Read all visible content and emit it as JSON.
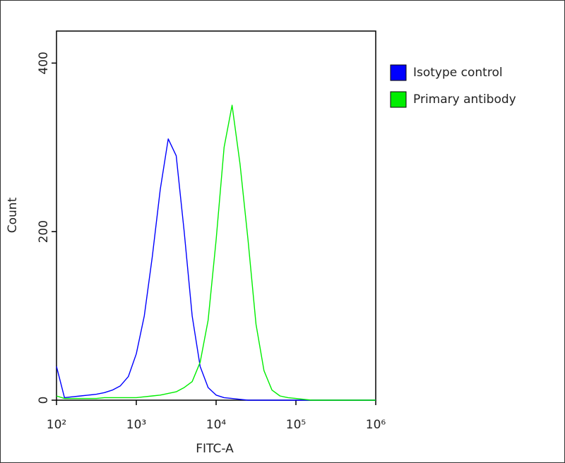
{
  "chart_data": {
    "type": "line",
    "xlabel": "FITC-A",
    "ylabel": "Count",
    "xscale": "log",
    "xlim": [
      100,
      1000000
    ],
    "ylim": [
      0,
      438
    ],
    "xticks": [
      {
        "value": 100,
        "label": "10²"
      },
      {
        "value": 1000,
        "label": "10³"
      },
      {
        "value": 10000,
        "label": "10⁴"
      },
      {
        "value": 100000,
        "label": "10⁵"
      },
      {
        "value": 1000000,
        "label": "10⁶"
      }
    ],
    "yticks": [
      0,
      200,
      400
    ],
    "legend": "outside-right",
    "x": [
      100,
      126,
      158,
      200,
      251,
      316,
      398,
      501,
      631,
      794,
      1000,
      1259,
      1585,
      1995,
      2512,
      3162,
      3981,
      5012,
      6310,
      7943,
      10000,
      12589,
      15849,
      19953,
      25119,
      31623,
      39811,
      50119,
      63096,
      79433,
      100000,
      125893,
      158489,
      199526,
      251189,
      316228,
      398107,
      501187,
      630957,
      794328,
      1000000
    ],
    "series": [
      {
        "name": "Isotype control",
        "color": "#0000ff",
        "values": [
          40,
          3,
          4,
          5,
          6,
          7,
          9,
          12,
          17,
          28,
          55,
          100,
          170,
          250,
          310,
          290,
          200,
          100,
          40,
          15,
          6,
          3,
          2,
          1,
          0,
          0,
          0,
          0,
          0,
          0,
          0,
          0,
          0,
          0,
          0,
          0,
          0,
          0,
          0,
          0,
          0
        ]
      },
      {
        "name": "Primary antibody",
        "color": "#00ee00",
        "values": [
          5,
          2,
          2,
          2,
          2,
          2,
          3,
          3,
          3,
          3,
          3,
          4,
          5,
          6,
          8,
          10,
          15,
          22,
          45,
          95,
          190,
          300,
          350,
          280,
          190,
          90,
          35,
          12,
          5,
          3,
          2,
          1,
          0,
          0,
          0,
          0,
          0,
          0,
          0,
          0,
          0
        ]
      }
    ]
  }
}
